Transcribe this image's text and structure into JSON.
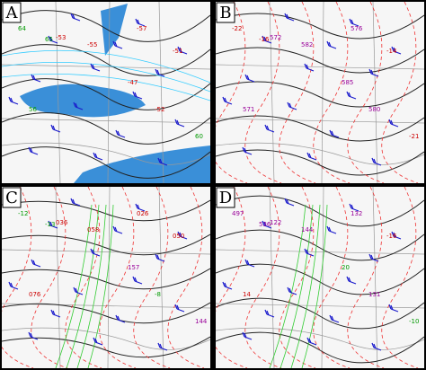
{
  "panels": [
    {
      "label": "A",
      "numbers": [
        "-55",
        "-53",
        "-57",
        "64",
        "65",
        "-51",
        "56",
        "60",
        "-52",
        "-47"
      ]
    },
    {
      "label": "B",
      "numbers": [
        "582",
        "572",
        "576",
        "-22",
        "-16",
        "-14",
        "571",
        "-21",
        "580",
        "585"
      ]
    },
    {
      "label": "C",
      "numbers": [
        "058",
        "036",
        "026",
        "-12",
        "-13",
        "050",
        "076",
        "144",
        "-8",
        "157"
      ]
    },
    {
      "label": "D",
      "numbers": [
        "144",
        "122",
        "132",
        "497",
        "536",
        "-16",
        "14",
        "-10",
        "131",
        "20"
      ]
    }
  ]
}
